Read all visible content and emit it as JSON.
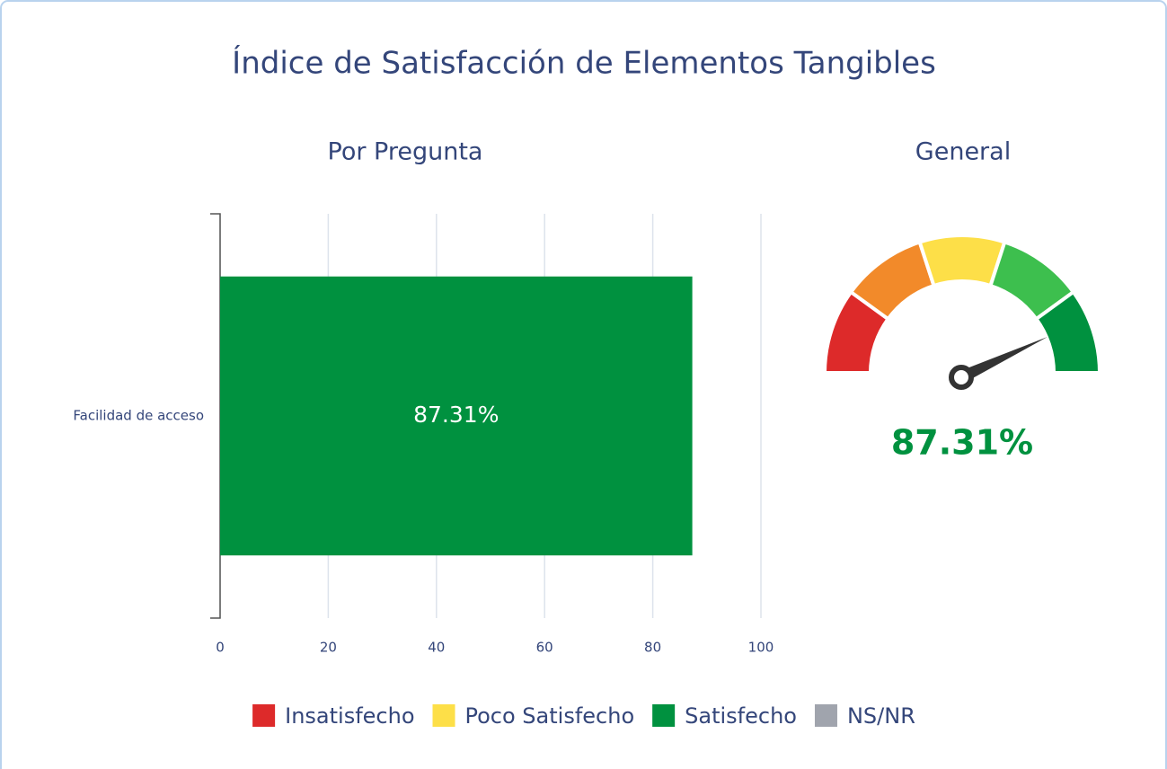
{
  "title": "Índice de Satisfacción de Elementos Tangibles",
  "chart_data": [
    {
      "type": "bar",
      "orientation": "horizontal",
      "title": "Por Pregunta",
      "categories": [
        "Facilidad de acceso"
      ],
      "values": [
        87.31
      ],
      "value_labels": [
        "87.31%"
      ],
      "color": "#00913f",
      "xlim": [
        0,
        100
      ],
      "xticks": [
        0,
        20,
        40,
        60,
        80,
        100
      ],
      "grid": true
    },
    {
      "type": "gauge",
      "title": "General",
      "value": 87.31,
      "value_label": "87.31%",
      "range": [
        0,
        100
      ],
      "band_colors": [
        "#dd2a2a",
        "#f28a2a",
        "#fddf48",
        "#3dbf4e",
        "#00913f"
      ],
      "color": "#00913f"
    }
  ],
  "legend": [
    {
      "name": "Insatisfecho",
      "color": "#dd2a2a"
    },
    {
      "name": "Poco Satisfecho",
      "color": "#fddf48"
    },
    {
      "name": "Satisfecho",
      "color": "#00913f"
    },
    {
      "name": "NS/NR",
      "color": "#a0a4ad"
    }
  ]
}
